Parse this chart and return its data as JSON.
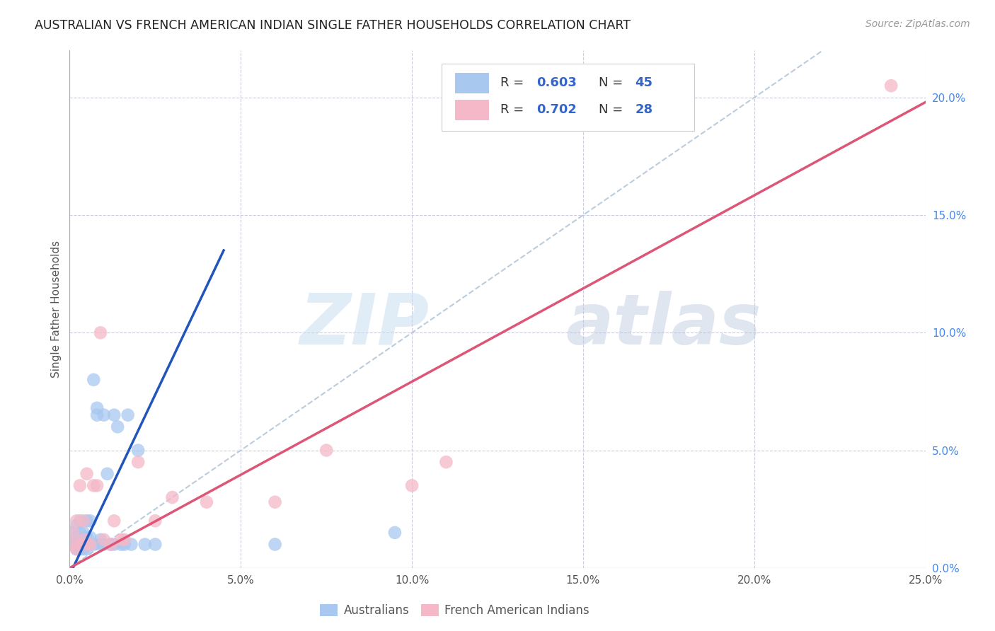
{
  "title": "AUSTRALIAN VS FRENCH AMERICAN INDIAN SINGLE FATHER HOUSEHOLDS CORRELATION CHART",
  "source": "Source: ZipAtlas.com",
  "ylabel": "Single Father Households",
  "xlim": [
    0,
    0.25
  ],
  "ylim": [
    0,
    0.22
  ],
  "x_ticks": [
    0.0,
    0.05,
    0.1,
    0.15,
    0.2,
    0.25
  ],
  "x_tick_labels": [
    "0.0%",
    "5.0%",
    "10.0%",
    "15.0%",
    "20.0%",
    "25.0%"
  ],
  "y_ticks_right": [
    0.0,
    0.05,
    0.1,
    0.15,
    0.2
  ],
  "y_tick_labels_right": [
    "0.0%",
    "5.0%",
    "10.0%",
    "15.0%",
    "20.0%"
  ],
  "australian_color": "#A8C8F0",
  "french_color": "#F4B8C8",
  "australian_line_color": "#2255BB",
  "french_line_color": "#DD5577",
  "diagonal_color": "#BBCCDD",
  "R_australian": 0.603,
  "N_australian": 45,
  "R_french": 0.702,
  "N_french": 28,
  "watermark_zip": "ZIP",
  "watermark_atlas": "atlas",
  "aus_line_x0": 0.0,
  "aus_line_y0": -0.003,
  "aus_line_x1": 0.045,
  "aus_line_y1": 0.135,
  "fr_line_x0": 0.0,
  "fr_line_y0": 0.0,
  "fr_line_x1": 0.25,
  "fr_line_y1": 0.198,
  "australian_x": [
    0.001,
    0.001,
    0.001,
    0.002,
    0.002,
    0.002,
    0.002,
    0.003,
    0.003,
    0.003,
    0.003,
    0.003,
    0.004,
    0.004,
    0.004,
    0.004,
    0.005,
    0.005,
    0.005,
    0.005,
    0.006,
    0.006,
    0.006,
    0.007,
    0.007,
    0.008,
    0.008,
    0.009,
    0.009,
    0.01,
    0.01,
    0.011,
    0.012,
    0.013,
    0.013,
    0.014,
    0.015,
    0.016,
    0.017,
    0.018,
    0.02,
    0.022,
    0.025,
    0.06,
    0.095
  ],
  "australian_y": [
    0.01,
    0.012,
    0.015,
    0.008,
    0.01,
    0.013,
    0.018,
    0.008,
    0.01,
    0.012,
    0.015,
    0.02,
    0.008,
    0.01,
    0.012,
    0.015,
    0.008,
    0.01,
    0.013,
    0.02,
    0.01,
    0.013,
    0.02,
    0.01,
    0.08,
    0.065,
    0.068,
    0.01,
    0.012,
    0.01,
    0.065,
    0.04,
    0.01,
    0.01,
    0.065,
    0.06,
    0.01,
    0.01,
    0.065,
    0.01,
    0.05,
    0.01,
    0.01,
    0.01,
    0.015
  ],
  "french_x": [
    0.001,
    0.001,
    0.002,
    0.002,
    0.003,
    0.003,
    0.004,
    0.004,
    0.005,
    0.005,
    0.006,
    0.007,
    0.008,
    0.009,
    0.01,
    0.012,
    0.013,
    0.015,
    0.016,
    0.02,
    0.025,
    0.03,
    0.04,
    0.06,
    0.075,
    0.1,
    0.11,
    0.24
  ],
  "french_y": [
    0.01,
    0.015,
    0.008,
    0.02,
    0.01,
    0.035,
    0.012,
    0.02,
    0.01,
    0.04,
    0.01,
    0.035,
    0.035,
    0.1,
    0.012,
    0.01,
    0.02,
    0.012,
    0.012,
    0.045,
    0.02,
    0.03,
    0.028,
    0.028,
    0.05,
    0.035,
    0.045,
    0.205
  ]
}
